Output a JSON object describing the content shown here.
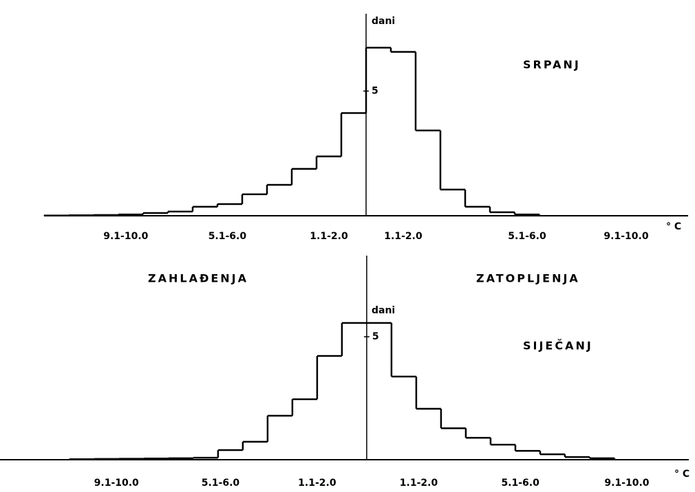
{
  "chart_data": [
    {
      "type": "histogram",
      "title": "SRPANJ",
      "ylabel": "dani",
      "xlabel": "° C",
      "bins": [
        -13,
        -12,
        -11,
        -10,
        -9,
        -8,
        -7,
        -6,
        -5,
        -4,
        -3,
        -2,
        -1,
        0,
        1,
        2,
        3,
        4,
        5,
        6,
        7
      ],
      "values": [
        0.01,
        0.02,
        0.03,
        0.05,
        0.11,
        0.17,
        0.36,
        0.47,
        0.86,
        1.24,
        1.88,
        2.38,
        4.12,
        6.74,
        6.57,
        3.42,
        1.05,
        0.36,
        0.14,
        0.05
      ],
      "color": "#000000",
      "xlim": [
        -13,
        13
      ],
      "ylim": [
        0,
        8.1
      ],
      "yticks": [
        5
      ],
      "xticks": [
        {
          "value": -9.7,
          "label": "9.1-10.0"
        },
        {
          "value": -5.6,
          "label": "5.1-6.0"
        },
        {
          "value": -1.5,
          "label": "1.1-2.0"
        },
        {
          "value": 1.5,
          "label": "1.1-2.0"
        },
        {
          "value": 6.5,
          "label": "5.1-6.0"
        },
        {
          "value": 10.5,
          "label": "9.1-10.0"
        }
      ]
    },
    {
      "type": "histogram",
      "title": "SIJEČANJ",
      "ylabel": "dani",
      "xlabel": "° C",
      "annotations": [
        "ZAHLAĐENJA",
        "ZATOPLJENJA"
      ],
      "bins": [
        -12,
        -11,
        -10,
        -9,
        -8,
        -7,
        -6,
        -5,
        -4,
        -3,
        -2,
        -1,
        0,
        1,
        2,
        3,
        4,
        5,
        6,
        7,
        8,
        9,
        10
      ],
      "values": [
        0.02,
        0.03,
        0.04,
        0.05,
        0.06,
        0.08,
        0.39,
        0.73,
        1.79,
        2.46,
        4.22,
        5.56,
        5.56,
        3.38,
        2.07,
        1.28,
        0.89,
        0.61,
        0.36,
        0.22,
        0.11,
        0.06
      ],
      "color": "#000000",
      "xlim": [
        -14.8,
        13
      ],
      "ylim": [
        0,
        8.3
      ],
      "yticks": [
        5
      ],
      "xticks": [
        {
          "value": -10.1,
          "label": "9.1-10.0"
        },
        {
          "value": -5.9,
          "label": "5.1-6.0"
        },
        {
          "value": -2.0,
          "label": "1.1-2.0"
        },
        {
          "value": 2.1,
          "label": "1.1-2.0"
        },
        {
          "value": 6.2,
          "label": "5.1-6.0"
        },
        {
          "value": 10.5,
          "label": "9.1-10.0"
        }
      ]
    }
  ]
}
